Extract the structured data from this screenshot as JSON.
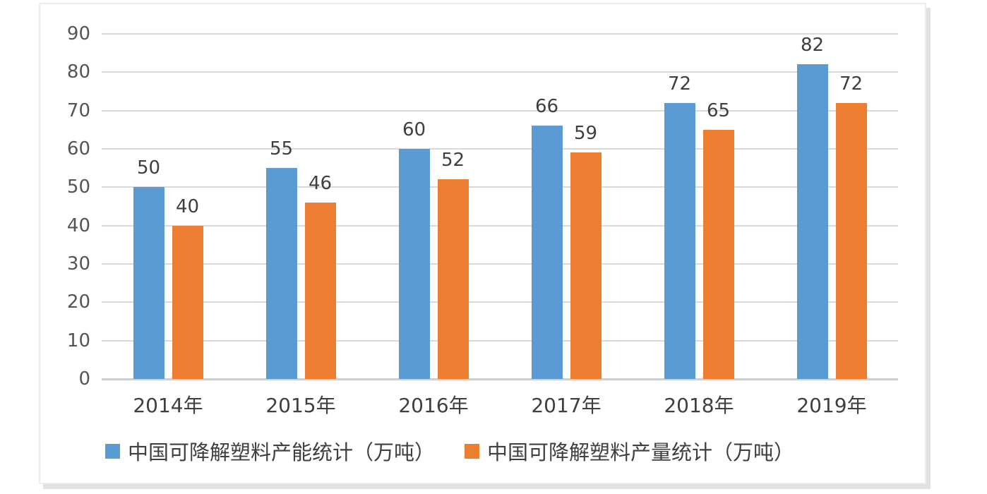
{
  "chart_data": {
    "type": "bar",
    "title": "",
    "xlabel": "",
    "ylabel": "",
    "categories": [
      "2014年",
      "2015年",
      "2016年",
      "2017年",
      "2018年",
      "2019年"
    ],
    "series": [
      {
        "name": "中国可降解塑料产能统计（万吨）",
        "color": "#5B9BD5",
        "values": [
          50,
          55,
          60,
          66,
          72,
          82
        ]
      },
      {
        "name": "中国可降解塑料产量统计（万吨）",
        "color": "#ED7D31",
        "values": [
          40,
          46,
          52,
          59,
          65,
          72
        ]
      }
    ],
    "data_labels_shown": true,
    "ylim": [
      0,
      90
    ],
    "ytick_step": 10,
    "ytick_labels": [
      "0",
      "10",
      "20",
      "30",
      "40",
      "50",
      "60",
      "70",
      "80",
      "90"
    ],
    "grid": true,
    "legend_position": "bottom"
  },
  "colors": {
    "gridline": "#dadada",
    "axis_line": "#cfcfcf",
    "tick_text": "#555555",
    "label_text": "#3f3f3f",
    "panel_border": "#ececec",
    "panel_shadow": "#e2e2e2",
    "background": "#ffffff"
  }
}
